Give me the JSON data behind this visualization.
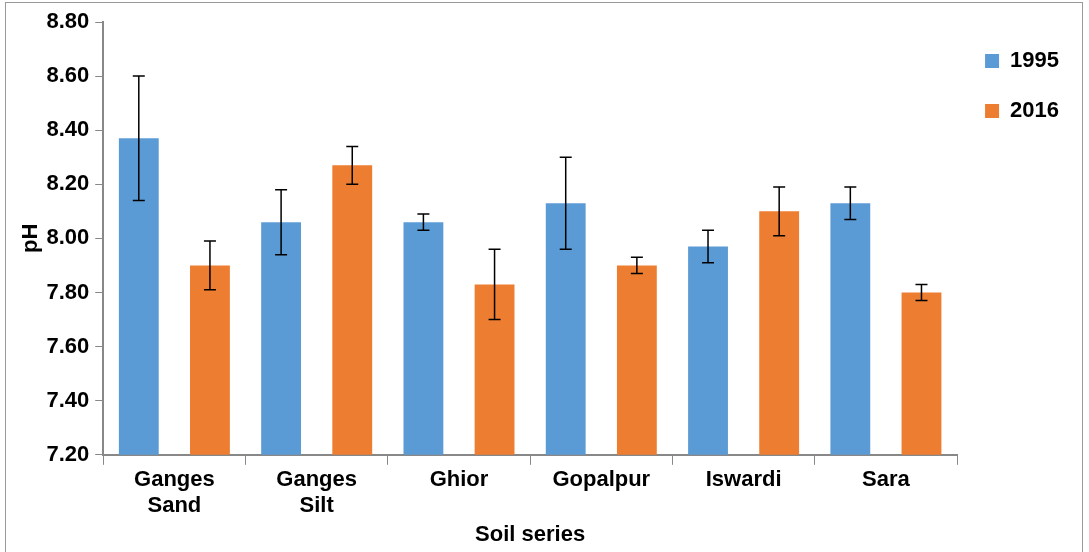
{
  "chart_data": {
    "type": "bar",
    "xlabel": "Soil series",
    "ylabel": "pH",
    "categories": [
      "Ganges Sand",
      "Ganges Silt",
      "Ghior",
      "Gopalpur",
      "Iswardi",
      "Sara"
    ],
    "series": [
      {
        "name": "1995",
        "color": "#5b9bd5",
        "values": [
          8.37,
          8.06,
          8.06,
          8.13,
          7.97,
          8.13
        ],
        "errors": [
          0.23,
          0.12,
          0.03,
          0.17,
          0.06,
          0.06
        ]
      },
      {
        "name": "2016",
        "color": "#ed7d31",
        "values": [
          7.9,
          8.27,
          7.83,
          7.9,
          8.1,
          7.8
        ],
        "errors": [
          0.09,
          0.07,
          0.13,
          0.03,
          0.09,
          0.03
        ]
      }
    ],
    "ylim": [
      7.2,
      8.8
    ],
    "yticks": [
      {
        "value": 7.2,
        "label": "7.20"
      },
      {
        "value": 7.4,
        "label": "7.40"
      },
      {
        "value": 7.6,
        "label": "7.60"
      },
      {
        "value": 7.8,
        "label": "7.80"
      },
      {
        "value": 8.0,
        "label": "8.00"
      },
      {
        "value": 8.2,
        "label": "8.20"
      },
      {
        "value": 8.4,
        "label": "8.40"
      },
      {
        "value": 8.6,
        "label": "8.60"
      },
      {
        "value": 8.8,
        "label": "8.80"
      }
    ],
    "grid": false,
    "legend": "right"
  }
}
